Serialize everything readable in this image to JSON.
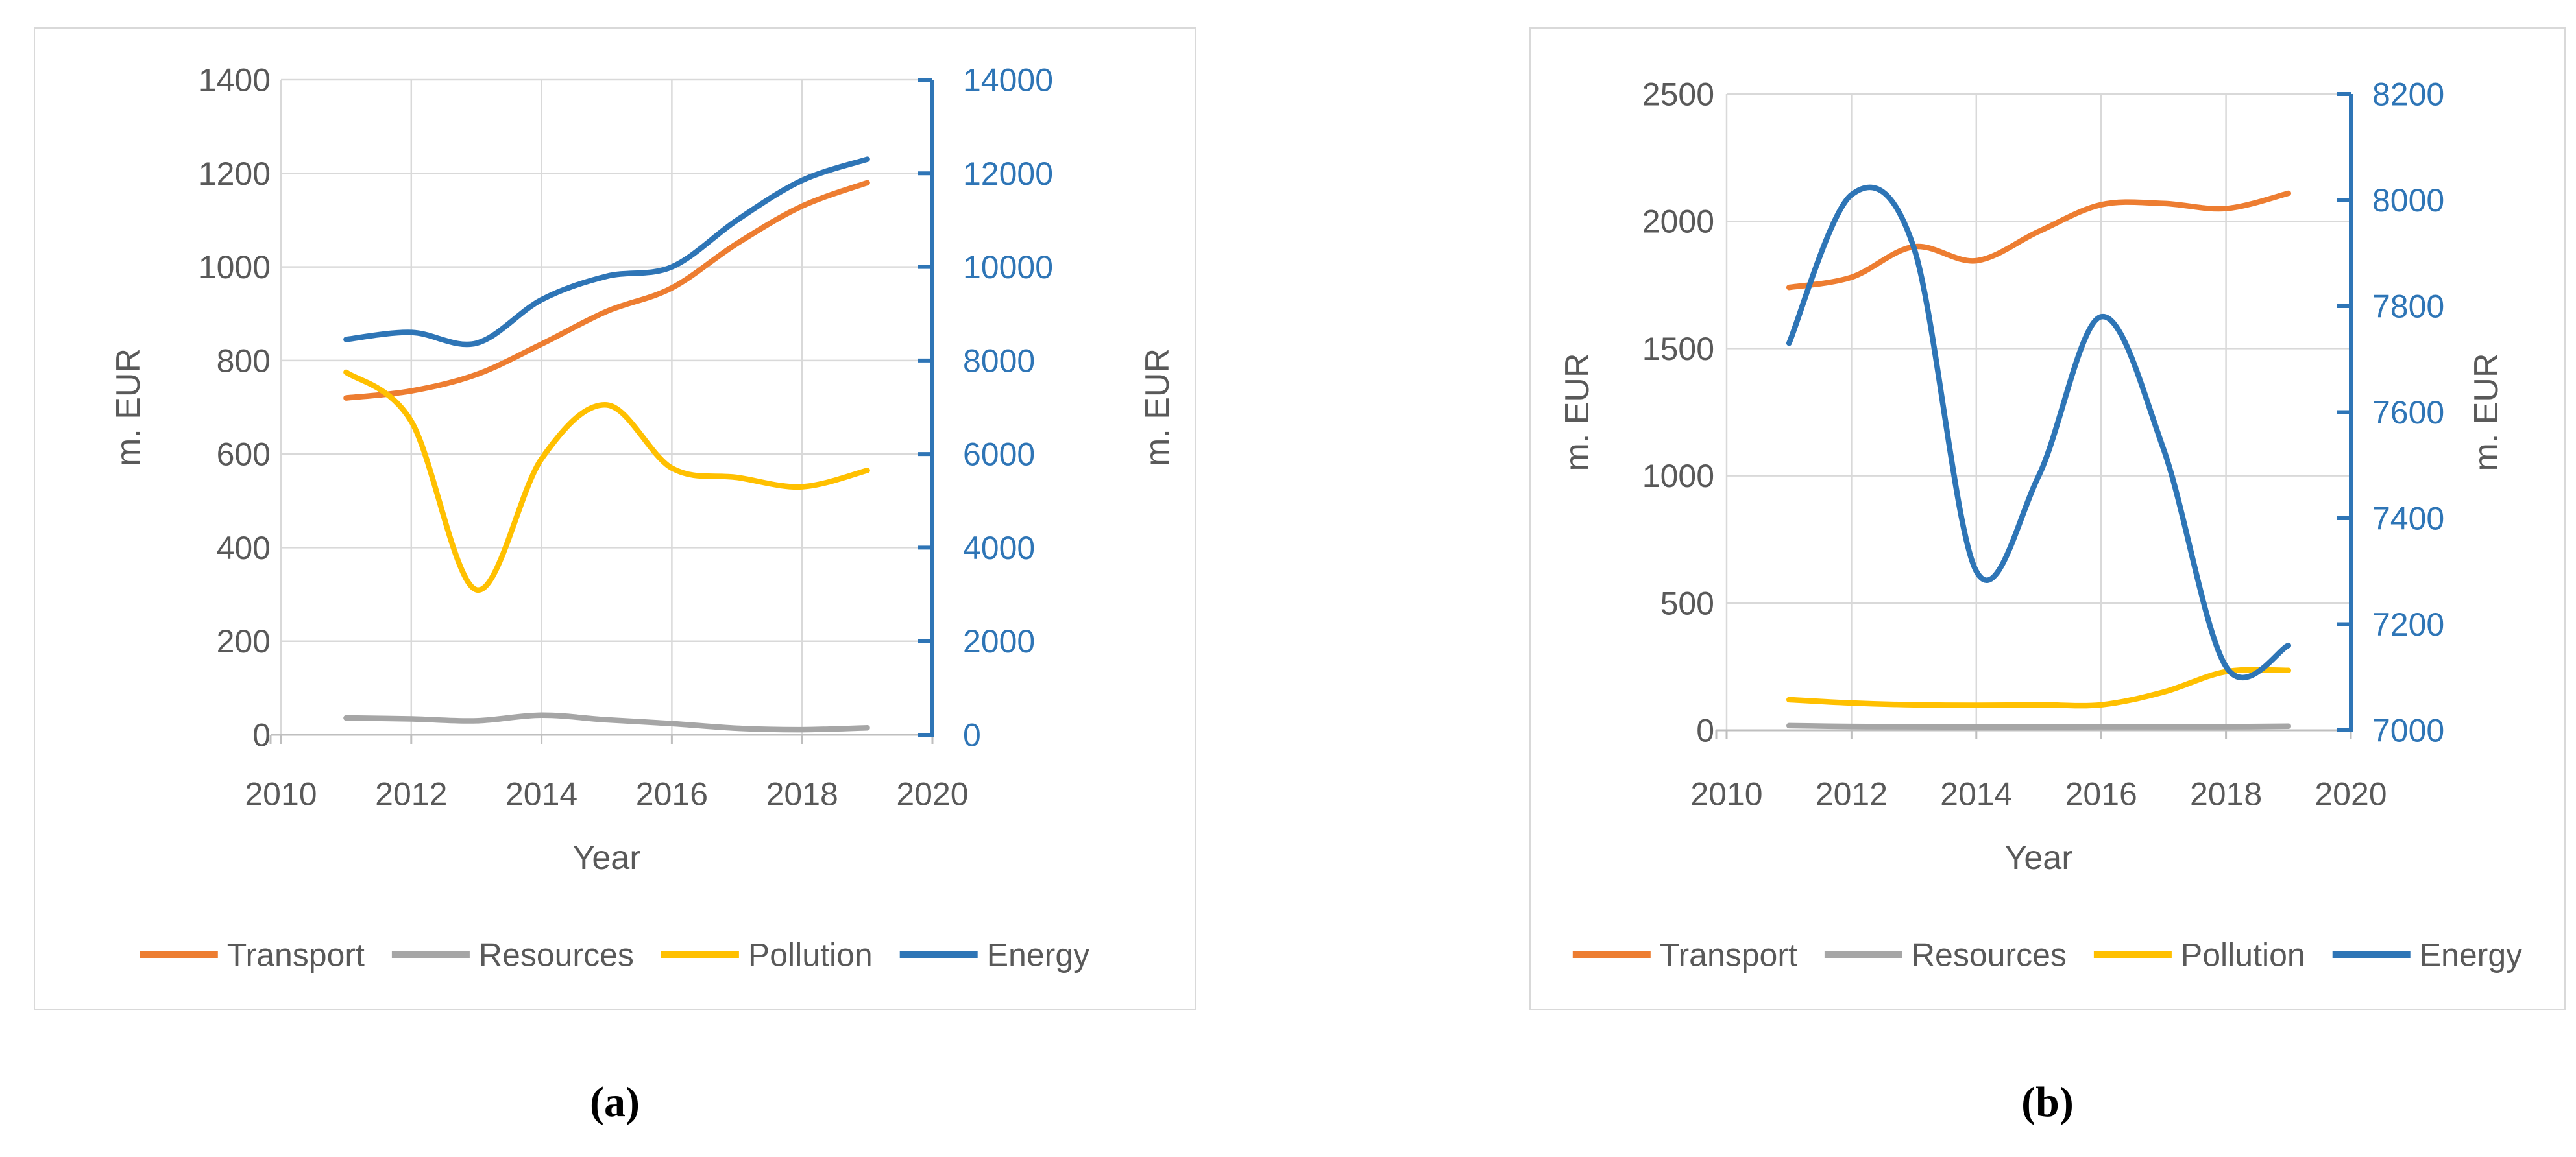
{
  "figure": {
    "background": "#FFFFFF",
    "panel_border_color": "#D9D9D9",
    "grid_color": "#D9D9D9",
    "axis_line_color": "#BFBFBF",
    "text_color": "#595959",
    "right_axis_color": "#2E75B6",
    "caption_color": "#000000",
    "legend_labels": [
      "Transport",
      "Resources",
      "Pollution",
      "Energy"
    ]
  },
  "chart_data": [
    {
      "panel": "a",
      "caption": "(a)",
      "type": "line",
      "smooth": true,
      "grid": true,
      "legend_position": "bottom",
      "xlabel": "Year",
      "ylabel_left": "m. EUR",
      "ylabel_right": "m. EUR",
      "x_range": [
        2010,
        2020
      ],
      "x_ticks": [
        2010,
        2012,
        2014,
        2016,
        2018,
        2020
      ],
      "left_axis": {
        "range": [
          0,
          1400
        ],
        "ticks": [
          0,
          200,
          400,
          600,
          800,
          1000,
          1200,
          1400
        ]
      },
      "right_axis": {
        "range": [
          0,
          14000
        ],
        "ticks": [
          0,
          2000,
          4000,
          6000,
          8000,
          10000,
          12000,
          14000
        ]
      },
      "years": [
        2011,
        2012,
        2013,
        2014,
        2015,
        2016,
        2017,
        2018,
        2019
      ],
      "series": [
        {
          "name": "Transport",
          "color": "#ED7D31",
          "axis": "left",
          "values": [
            720,
            735,
            770,
            835,
            905,
            955,
            1050,
            1130,
            1180
          ]
        },
        {
          "name": "Resources",
          "color": "#A6A6A6",
          "axis": "left",
          "values": [
            36,
            34,
            30,
            42,
            32,
            24,
            14,
            11,
            15
          ]
        },
        {
          "name": "Pollution",
          "color": "#FFC000",
          "axis": "left",
          "values": [
            775,
            670,
            310,
            590,
            705,
            570,
            550,
            530,
            565
          ]
        },
        {
          "name": "Energy",
          "color": "#2E75B6",
          "axis": "right",
          "values": [
            8450,
            8600,
            8370,
            9300,
            9800,
            10000,
            11000,
            11850,
            12300
          ]
        }
      ]
    },
    {
      "panel": "b",
      "caption": "(b)",
      "type": "line",
      "smooth": true,
      "grid": true,
      "legend_position": "bottom",
      "xlabel": "Year",
      "ylabel_left": "m. EUR",
      "ylabel_right": "m. EUR",
      "x_range": [
        2010,
        2020
      ],
      "x_ticks": [
        2010,
        2012,
        2014,
        2016,
        2018,
        2020
      ],
      "left_axis": {
        "range": [
          0,
          2500
        ],
        "ticks": [
          0,
          500,
          1000,
          1500,
          2000,
          2500
        ]
      },
      "right_axis": {
        "range": [
          7000,
          8200
        ],
        "ticks": [
          7000,
          7200,
          7400,
          7600,
          7800,
          8000,
          8200
        ]
      },
      "years": [
        2011,
        2012,
        2013,
        2014,
        2015,
        2016,
        2017,
        2018,
        2019
      ],
      "series": [
        {
          "name": "Transport",
          "color": "#ED7D31",
          "axis": "left",
          "values": [
            1740,
            1780,
            1900,
            1845,
            1960,
            2065,
            2070,
            2050,
            2110
          ]
        },
        {
          "name": "Resources",
          "color": "#A6A6A6",
          "axis": "left",
          "values": [
            18,
            15,
            14,
            13,
            13,
            14,
            14,
            14,
            16
          ]
        },
        {
          "name": "Pollution",
          "color": "#FFC000",
          "axis": "left",
          "values": [
            120,
            107,
            100,
            98,
            100,
            100,
            150,
            230,
            235
          ]
        },
        {
          "name": "Energy",
          "color": "#2E75B6",
          "axis": "right",
          "values": [
            7730,
            8010,
            7910,
            7300,
            7480,
            7780,
            7530,
            7120,
            7160
          ]
        }
      ]
    }
  ]
}
